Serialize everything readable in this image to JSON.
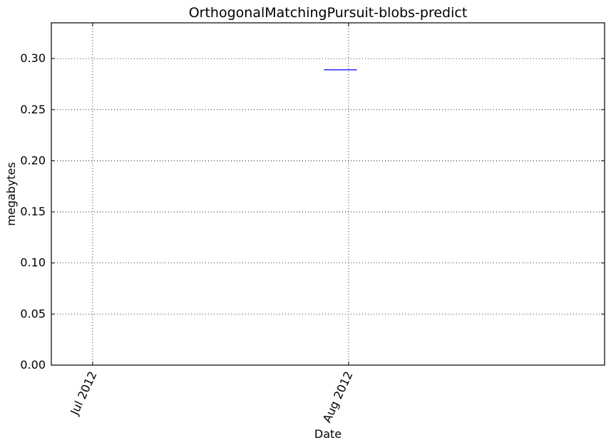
{
  "chart_data": {
    "type": "line",
    "title": "OrthogonalMatchingPursuit-blobs-predict",
    "xlabel": "Date",
    "ylabel": "megabytes",
    "x_axis_type": "date",
    "xlim": [
      "2012-06-26",
      "2012-09-01"
    ],
    "ylim": [
      0,
      0.335
    ],
    "xticks": [
      {
        "value": "2012-07-01",
        "label": "Jul 2012"
      },
      {
        "value": "2012-08-01",
        "label": "Aug 2012"
      }
    ],
    "yticks": [
      {
        "value": 0.0,
        "label": "0.00"
      },
      {
        "value": 0.05,
        "label": "0.05"
      },
      {
        "value": 0.1,
        "label": "0.10"
      },
      {
        "value": 0.15,
        "label": "0.15"
      },
      {
        "value": 0.2,
        "label": "0.20"
      },
      {
        "value": 0.25,
        "label": "0.25"
      },
      {
        "value": 0.3,
        "label": "0.30"
      }
    ],
    "grid": true,
    "series": [
      {
        "color": "#0000ff",
        "points": [
          {
            "x": "2012-07-29",
            "y": 0.289
          },
          {
            "x": "2012-08-02",
            "y": 0.289
          }
        ]
      }
    ]
  }
}
